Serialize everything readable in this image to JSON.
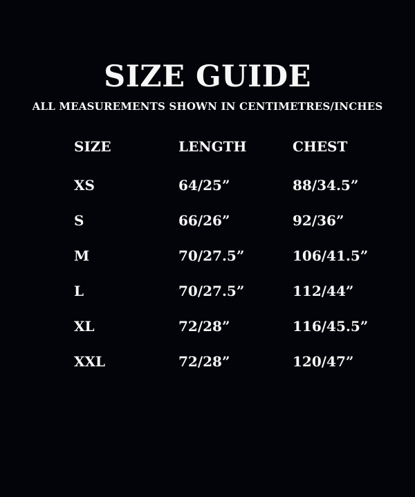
{
  "page": {
    "title": "SIZE GUIDE",
    "subtitle": "ALL MEASUREMENTS SHOWN IN CENTIMETRES/INCHES"
  },
  "table": {
    "columns": [
      "SIZE",
      "LENGTH",
      "CHEST"
    ],
    "rows": [
      {
        "size": "XS",
        "length": "64/25”",
        "chest": "88/34.5”"
      },
      {
        "size": "S",
        "length": "66/26”",
        "chest": "92/36”"
      },
      {
        "size": "M",
        "length": "70/27.5”",
        "chest": "106/41.5”"
      },
      {
        "size": "L",
        "length": "70/27.5”",
        "chest": "112/44”"
      },
      {
        "size": "XL",
        "length": "72/28”",
        "chest": "116/45.5”"
      },
      {
        "size": "XXL",
        "length": "72/28”",
        "chest": "120/47”"
      }
    ]
  },
  "colors": {
    "background": "#03040a",
    "text": "#f7f7f7"
  }
}
